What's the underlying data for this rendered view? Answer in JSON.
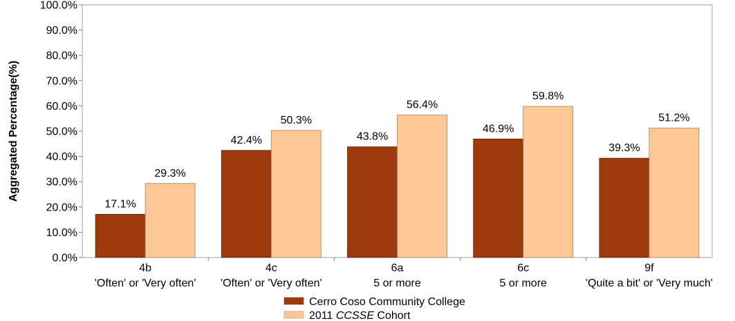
{
  "chart_data": {
    "type": "bar",
    "ylabel": "Aggregated Percentage(%)",
    "ylim": [
      0,
      100
    ],
    "y_ticks": [
      "0.0%",
      "10.0%",
      "20.0%",
      "30.0%",
      "40.0%",
      "50.0%",
      "60.0%",
      "70.0%",
      "80.0%",
      "90.0%",
      "100.0%"
    ],
    "grid": false,
    "legend_position": "bottom",
    "categories": [
      {
        "code": "4b",
        "desc": "'Often' or 'Very often'"
      },
      {
        "code": "4c",
        "desc": "'Often' or 'Very often'"
      },
      {
        "code": "6a",
        "desc": "5 or more"
      },
      {
        "code": "6c",
        "desc": "5 or more"
      },
      {
        "code": "9f",
        "desc": "'Quite a bit' or 'Very much'"
      }
    ],
    "series": [
      {
        "name": "Cerro Coso Community College",
        "color": "#9e3a0e",
        "values": [
          17.1,
          42.4,
          43.8,
          46.9,
          39.3
        ],
        "labels": [
          "17.1%",
          "42.4%",
          "43.8%",
          "46.9%",
          "39.3%"
        ]
      },
      {
        "name": "2011 CCSSE Cohort",
        "name_parts": [
          "2011 ",
          "CCSSE",
          " Cohort"
        ],
        "color": "#fdc895",
        "values": [
          29.3,
          50.3,
          56.4,
          59.8,
          51.2
        ],
        "labels": [
          "29.3%",
          "50.3%",
          "56.4%",
          "59.8%",
          "51.2%"
        ]
      }
    ]
  }
}
